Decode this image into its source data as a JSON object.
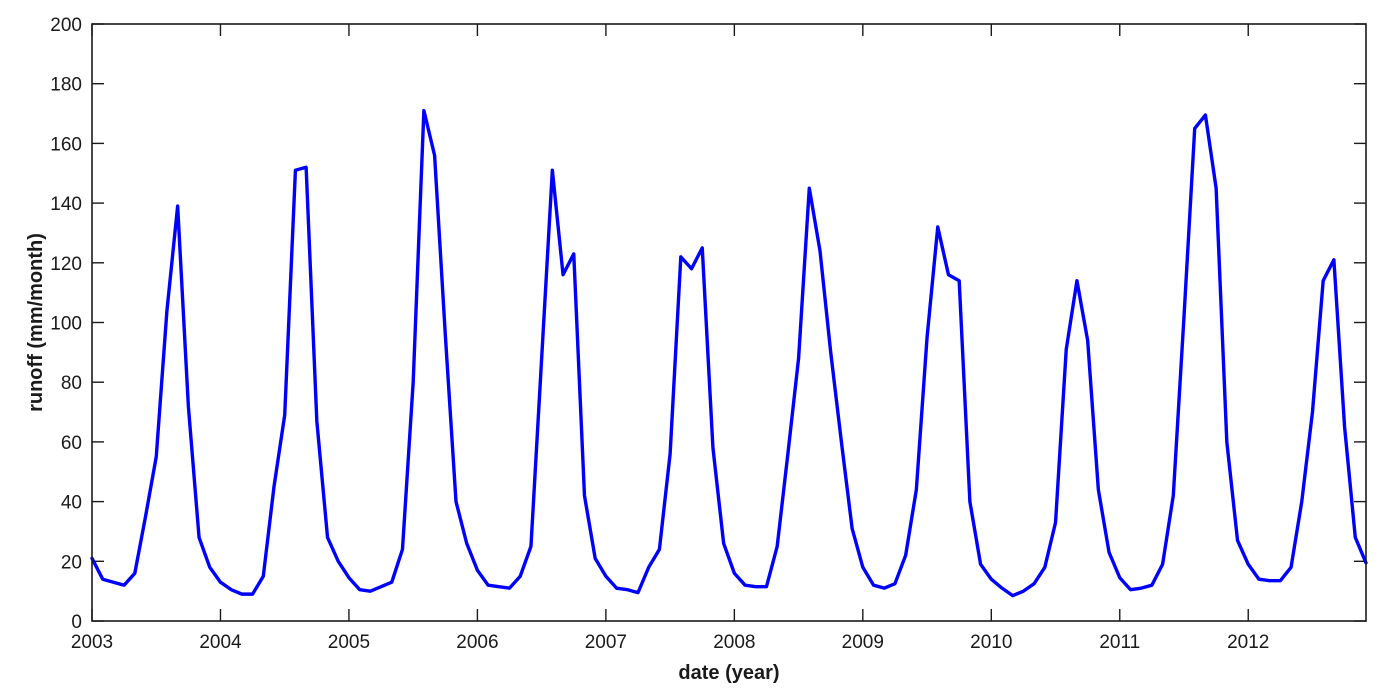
{
  "chart_data": {
    "type": "line",
    "title": "",
    "xlabel": "date (year)",
    "ylabel": "runoff (mm/month)",
    "xlim": [
      "2003-01",
      "2012-12"
    ],
    "ylim": [
      0,
      200
    ],
    "x_ticks": [
      "2003",
      "2004",
      "2005",
      "2006",
      "2007",
      "2008",
      "2009",
      "2010",
      "2011",
      "2012"
    ],
    "y_ticks": [
      0,
      20,
      40,
      60,
      80,
      100,
      120,
      140,
      160,
      180,
      200
    ],
    "grid": false,
    "legend": "none",
    "line_color": "#0000ff",
    "series": [
      {
        "x": [
          "2003-01",
          "2003-02",
          "2003-03",
          "2003-04",
          "2003-05",
          "2003-06",
          "2003-07",
          "2003-08",
          "2003-09",
          "2003-10",
          "2003-11",
          "2003-12",
          "2004-01",
          "2004-02",
          "2004-03",
          "2004-04",
          "2004-05",
          "2004-06",
          "2004-07",
          "2004-08",
          "2004-09",
          "2004-10",
          "2004-11",
          "2004-12",
          "2005-01",
          "2005-02",
          "2005-03",
          "2005-04",
          "2005-05",
          "2005-06",
          "2005-07",
          "2005-08",
          "2005-09",
          "2005-10",
          "2005-11",
          "2005-12",
          "2006-01",
          "2006-02",
          "2006-03",
          "2006-04",
          "2006-05",
          "2006-06",
          "2006-07",
          "2006-08",
          "2006-09",
          "2006-10",
          "2006-11",
          "2006-12",
          "2007-01",
          "2007-02",
          "2007-03",
          "2007-04",
          "2007-05",
          "2007-06",
          "2007-07",
          "2007-08",
          "2007-09",
          "2007-10",
          "2007-11",
          "2007-12",
          "2008-01",
          "2008-02",
          "2008-03",
          "2008-04",
          "2008-05",
          "2008-06",
          "2008-07",
          "2008-08",
          "2008-09",
          "2008-10",
          "2008-11",
          "2008-12",
          "2009-01",
          "2009-02",
          "2009-03",
          "2009-04",
          "2009-05",
          "2009-06",
          "2009-07",
          "2009-08",
          "2009-09",
          "2009-10",
          "2009-11",
          "2009-12",
          "2010-01",
          "2010-02",
          "2010-03",
          "2010-04",
          "2010-05",
          "2010-06",
          "2010-07",
          "2010-08",
          "2010-09",
          "2010-10",
          "2010-11",
          "2010-12",
          "2011-01",
          "2011-02",
          "2011-03",
          "2011-04",
          "2011-05",
          "2011-06",
          "2011-07",
          "2011-08",
          "2011-09",
          "2011-10",
          "2011-11",
          "2011-12",
          "2012-01",
          "2012-02",
          "2012-03",
          "2012-04",
          "2012-05",
          "2012-06",
          "2012-07",
          "2012-08",
          "2012-09",
          "2012-10",
          "2012-11",
          "2012-12"
        ],
        "values": [
          21,
          14,
          13,
          12,
          16,
          35,
          55,
          104,
          139,
          72,
          28,
          18,
          13,
          10.5,
          9,
          9,
          15,
          45,
          69,
          151,
          152,
          67,
          28,
          20,
          14.5,
          10.5,
          10,
          11.5,
          13,
          24,
          80,
          171,
          156,
          96,
          40,
          26,
          17,
          12,
          11.5,
          11,
          15,
          25,
          88,
          151,
          116,
          123,
          42,
          21,
          15,
          11,
          10.5,
          9.5,
          18,
          24,
          56,
          122,
          118,
          125,
          58,
          26,
          16,
          12,
          11.5,
          11.5,
          25,
          56,
          88,
          145,
          124,
          90,
          60,
          31,
          18,
          12,
          11,
          12.5,
          22,
          44,
          95,
          132,
          116,
          114,
          40,
          19,
          14,
          11,
          8.5,
          10,
          12.5,
          18,
          33,
          91,
          114,
          94,
          44,
          23,
          14.5,
          10.5,
          11,
          12,
          19,
          42,
          102,
          165,
          169.5,
          145,
          60,
          27,
          19,
          14,
          13.5,
          13.5,
          18,
          40,
          70,
          114,
          121,
          65,
          28,
          19.5
        ]
      }
    ]
  }
}
